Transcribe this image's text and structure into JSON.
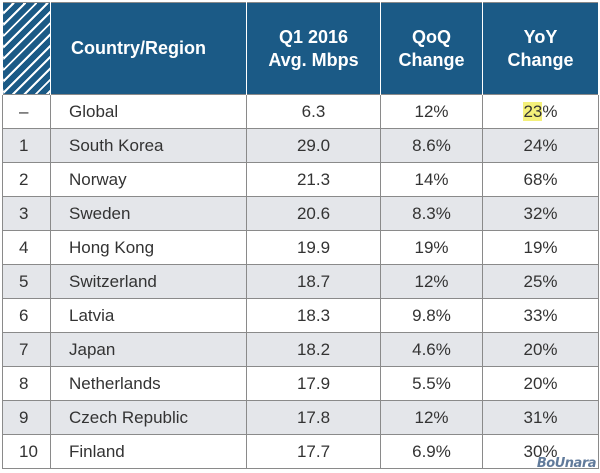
{
  "header": {
    "rank": "",
    "country": "Country/Region",
    "speed_line1": "Q1 2016",
    "speed_line2": "Avg. Mbps",
    "qoq_line1": "QoQ",
    "qoq_line2": "Change",
    "yoy_line1": "YoY",
    "yoy_line2": "Change"
  },
  "rows": [
    {
      "rank": "–",
      "country": "Global",
      "speed": "6.3",
      "qoq": "12%",
      "yoy_highlight": "23",
      "yoy_rest": "%"
    },
    {
      "rank": "1",
      "country": "South Korea",
      "speed": "29.0",
      "qoq": "8.6%",
      "yoy": "24%"
    },
    {
      "rank": "2",
      "country": "Norway",
      "speed": "21.3",
      "qoq": "14%",
      "yoy": "68%"
    },
    {
      "rank": "3",
      "country": "Sweden",
      "speed": "20.6",
      "qoq": "8.3%",
      "yoy": "32%"
    },
    {
      "rank": "4",
      "country": "Hong Kong",
      "speed": "19.9",
      "qoq": "19%",
      "yoy": "19%"
    },
    {
      "rank": "5",
      "country": "Switzerland",
      "speed": "18.7",
      "qoq": "12%",
      "yoy": "25%"
    },
    {
      "rank": "6",
      "country": "Latvia",
      "speed": "18.3",
      "qoq": "9.8%",
      "yoy": "33%"
    },
    {
      "rank": "7",
      "country": "Japan",
      "speed": "18.2",
      "qoq": "4.6%",
      "yoy": "20%"
    },
    {
      "rank": "8",
      "country": "Netherlands",
      "speed": "17.9",
      "qoq": "5.5%",
      "yoy": "20%"
    },
    {
      "rank": "9",
      "country": "Czech Republic",
      "speed": "17.8",
      "qoq": "12%",
      "yoy": "31%"
    },
    {
      "rank": "10",
      "country": "Finland",
      "speed": "17.7",
      "qoq": "6.9%",
      "yoy": "30%"
    }
  ],
  "colors": {
    "header_bg": "#1b5a86",
    "header_text": "#ffffff",
    "row_alt_bg": "#e4e6ea",
    "highlight": "#f4f07a"
  },
  "watermark": "BoUnara"
}
